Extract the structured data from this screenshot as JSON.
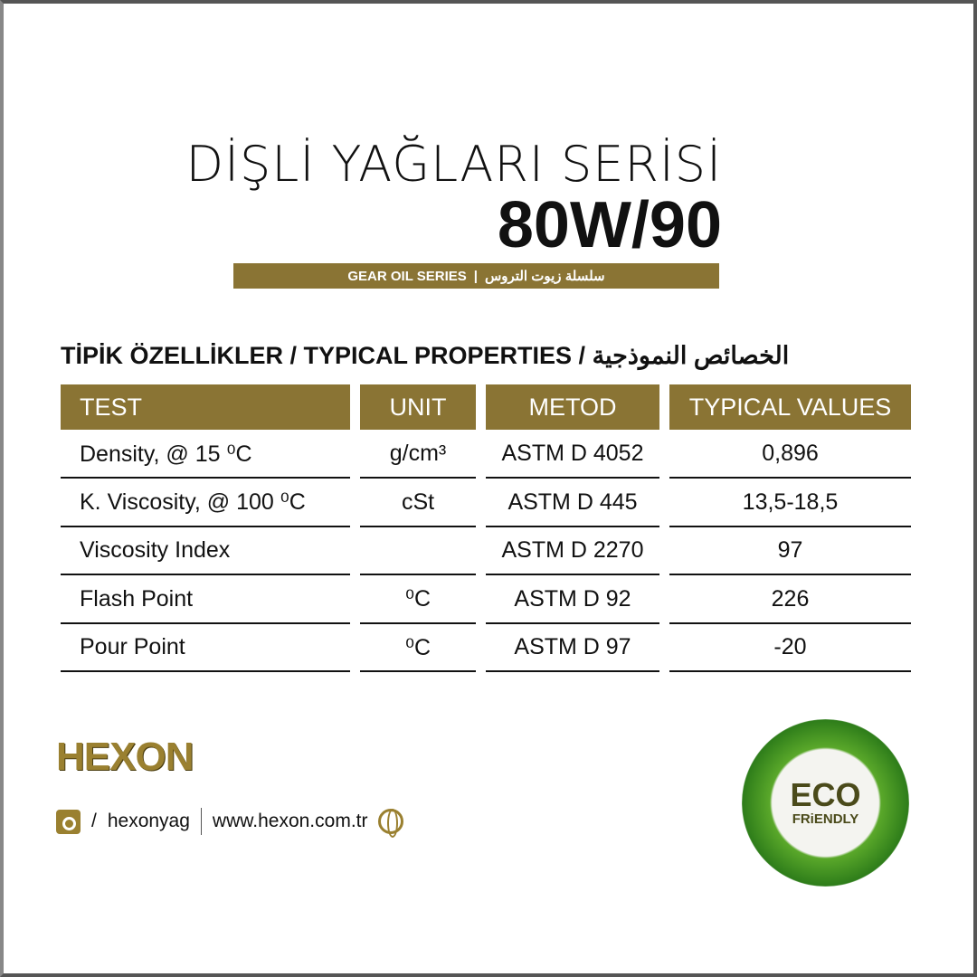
{
  "header": {
    "title": "DİŞLİ YAĞLARI SERİSİ",
    "grade": "80W/90",
    "band_en": "GEAR OIL SERIES",
    "band_sep": "|",
    "band_ar": "سلسلة زيوت التروس"
  },
  "section_title": "TİPİK ÖZELLİKLER / TYPICAL PROPERTIES / الخصائص النموذجية",
  "table": {
    "headers": [
      "TEST",
      "UNIT",
      "METOD",
      "TYPICAL VALUES"
    ],
    "rows": [
      [
        "Density, @ 15 ⁰C",
        "g/cm³",
        "ASTM D 4052",
        "0,896"
      ],
      [
        "K. Viscosity, @ 100 ⁰C",
        "cSt",
        "ASTM D 445",
        "13,5-18,5"
      ],
      [
        "Viscosity Index",
        "",
        "ASTM D 2270",
        "97"
      ],
      [
        "Flash Point",
        "⁰C",
        "ASTM D 92",
        "226"
      ],
      [
        "Pour Point",
        "⁰C",
        "ASTM D 97",
        "-20"
      ]
    ]
  },
  "footer": {
    "logo": "HEXON",
    "instagram_prefix": "/",
    "instagram": "hexonyag",
    "website": "www.hexon.com.tr",
    "icons": [
      "instagram-icon",
      "globe-icon"
    ]
  },
  "badge": {
    "line1": "ECO",
    "line2": "FRiENDLY"
  },
  "colors": {
    "gold": "#8a7434"
  }
}
